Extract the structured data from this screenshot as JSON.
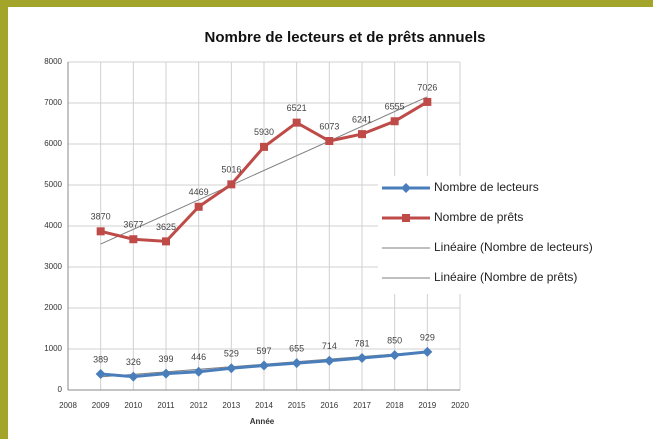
{
  "chart_data": {
    "type": "line",
    "title": "Nombre de lecteurs et de prêts annuels",
    "x_label": "Année",
    "x": [
      2009,
      2010,
      2011,
      2012,
      2013,
      2014,
      2015,
      2016,
      2017,
      2018,
      2019
    ],
    "series": [
      {
        "name": "Nombre de lecteurs",
        "color": "#4a7ebb",
        "marker": "diamond",
        "data_labels": true,
        "values": [
          389,
          326,
          399,
          446,
          529,
          597,
          655,
          714,
          781,
          850,
          929
        ]
      },
      {
        "name": "Nombre de prêts",
        "color": "#be4b48",
        "marker": "square",
        "data_labels": true,
        "values": [
          3870,
          3677,
          3625,
          4469,
          5016,
          5930,
          6521,
          6073,
          6241,
          6555,
          7026
        ]
      },
      {
        "name": "Linéaire (Nombre de lecteurs)",
        "color": "#7f7f7f",
        "marker": "none",
        "data_labels": false,
        "x": [
          2009,
          2019
        ],
        "values": [
          320,
          940
        ]
      },
      {
        "name": "Linéaire (Nombre de prêts)",
        "color": "#7f7f7f",
        "marker": "none",
        "data_labels": false,
        "x": [
          2009,
          2019
        ],
        "values": [
          3560,
          7150
        ]
      }
    ],
    "xlim": [
      2008,
      2020
    ],
    "xticks": [
      2008,
      2009,
      2010,
      2011,
      2012,
      2013,
      2014,
      2015,
      2016,
      2017,
      2018,
      2019,
      2020
    ],
    "ylim": [
      0,
      8000
    ],
    "yticks": [
      0,
      1000,
      2000,
      3000,
      4000,
      5000,
      6000,
      7000,
      8000
    ],
    "grid": true,
    "legend": "right"
  }
}
